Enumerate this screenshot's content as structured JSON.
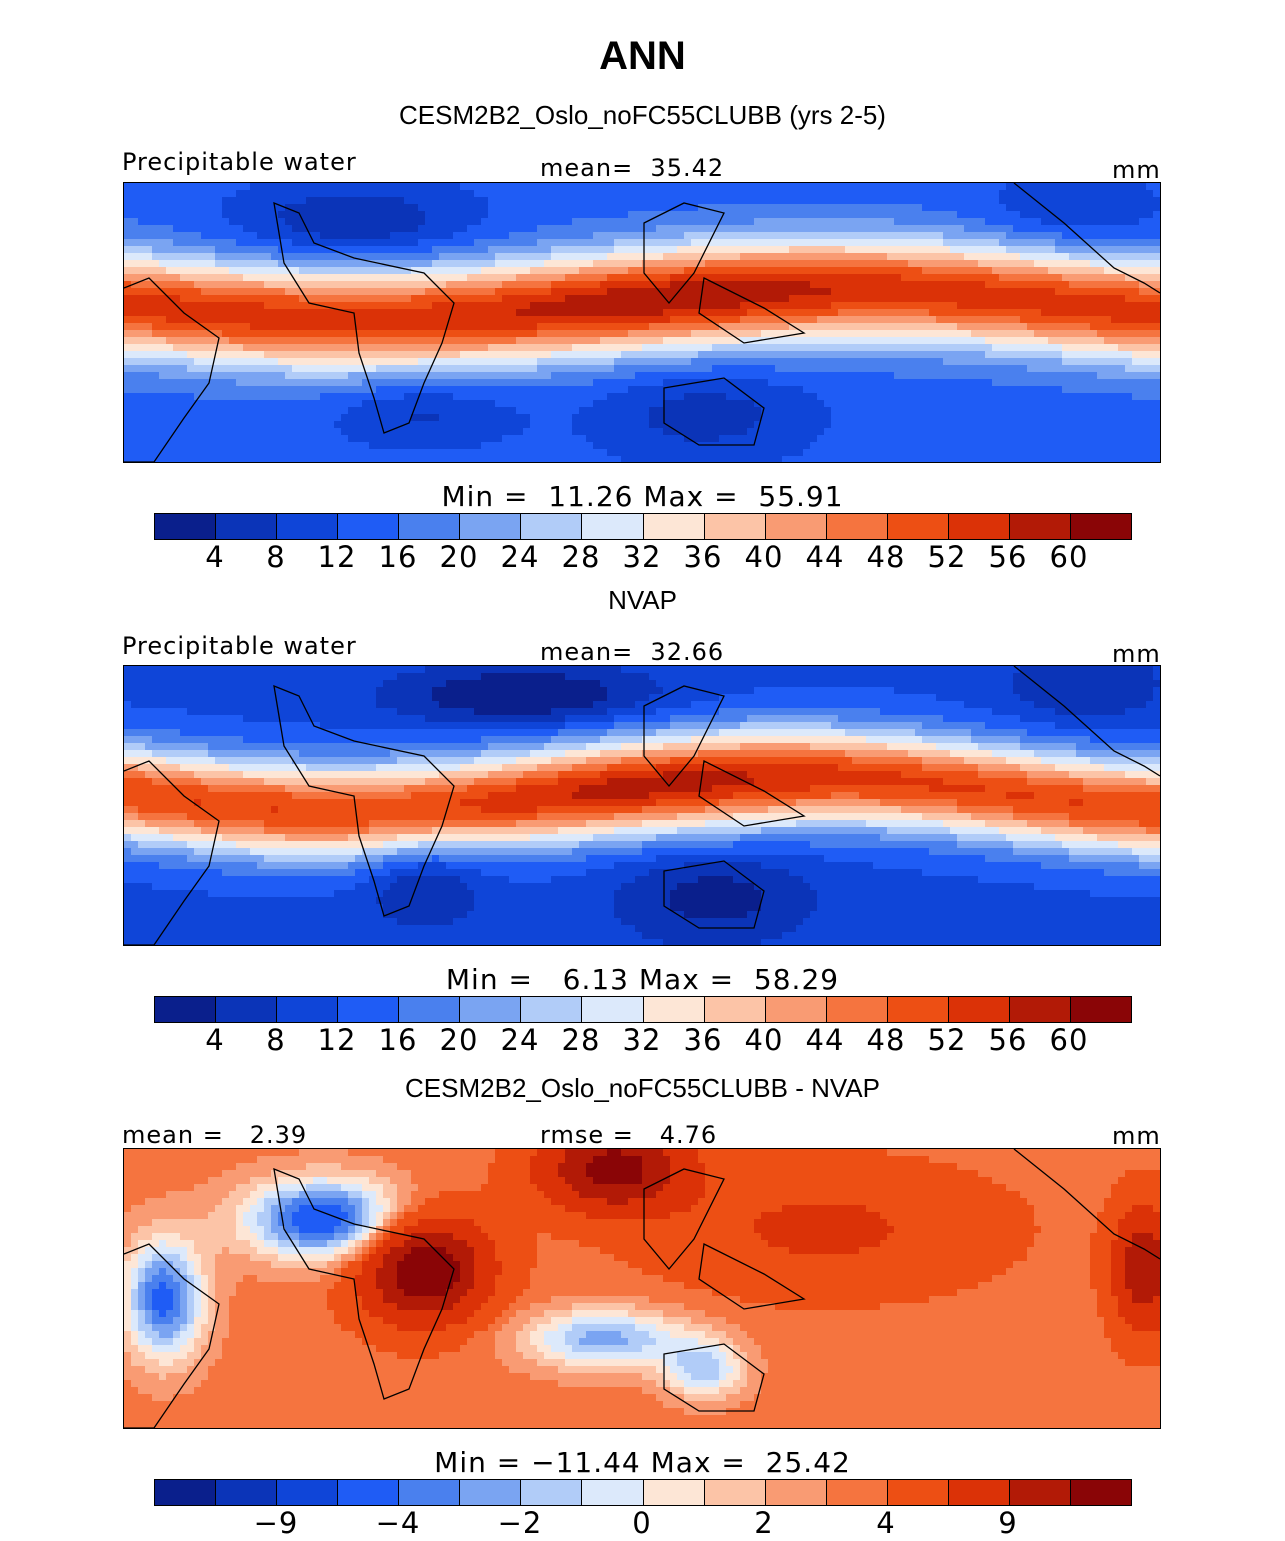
{
  "title": "ANN",
  "panels": [
    {
      "title": "CESM2B2_Oslo_noFC55CLUBB (yrs 2-5)",
      "left_label": "Precipitable water",
      "center_label": "mean=  35.42",
      "right_label": "mm",
      "min_max": "Min =  11.26 Max =  55.91",
      "colorbar": {
        "colors": [
          "#0a1f8c",
          "#0b34b8",
          "#0f45d8",
          "#1f5cf5",
          "#4a80ee",
          "#7aa4f2",
          "#b1ccf8",
          "#dce9fb",
          "#fde6d6",
          "#fcc4a7",
          "#f99b73",
          "#f5743f",
          "#ed4f14",
          "#db3207",
          "#b21a06",
          "#8a0506"
        ],
        "tick_labels": [
          "4",
          "8",
          "12",
          "16",
          "20",
          "24",
          "28",
          "32",
          "36",
          "40",
          "44",
          "48",
          "52",
          "56",
          "60"
        ]
      },
      "field": "model"
    },
    {
      "title": "NVAP",
      "left_label": "Precipitable water",
      "center_label": "mean=  32.66",
      "right_label": "mm",
      "min_max": "Min =   6.13 Max =  58.29",
      "colorbar": {
        "colors": [
          "#0a1f8c",
          "#0b34b8",
          "#0f45d8",
          "#1f5cf5",
          "#4a80ee",
          "#7aa4f2",
          "#b1ccf8",
          "#dce9fb",
          "#fde6d6",
          "#fcc4a7",
          "#f99b73",
          "#f5743f",
          "#ed4f14",
          "#db3207",
          "#b21a06",
          "#8a0506"
        ],
        "tick_labels": [
          "4",
          "8",
          "12",
          "16",
          "20",
          "24",
          "28",
          "32",
          "36",
          "40",
          "44",
          "48",
          "52",
          "56",
          "60"
        ]
      },
      "field": "obs"
    },
    {
      "title": "CESM2B2_Oslo_noFC55CLUBB - NVAP",
      "left_label": "mean =   2.39",
      "center_label": "rmse =   4.76",
      "right_label": "mm",
      "min_max": "Min = −11.44 Max =  25.42",
      "colorbar": {
        "colors": [
          "#0a1f8c",
          "#0b34b8",
          "#0f45d8",
          "#1f5cf5",
          "#4a80ee",
          "#7aa4f2",
          "#b1ccf8",
          "#dce9fb",
          "#fde6d6",
          "#fcc4a7",
          "#f99b73",
          "#f5743f",
          "#ed4f14",
          "#db3207",
          "#b21a06",
          "#8a0506"
        ],
        "tick_labels": [
          "−9",
          "−4",
          "−2",
          "0",
          "2",
          "4",
          "9"
        ],
        "tick_boundaries": [
          2,
          4,
          6,
          8,
          10,
          12,
          14
        ]
      },
      "field": "diff"
    }
  ]
}
